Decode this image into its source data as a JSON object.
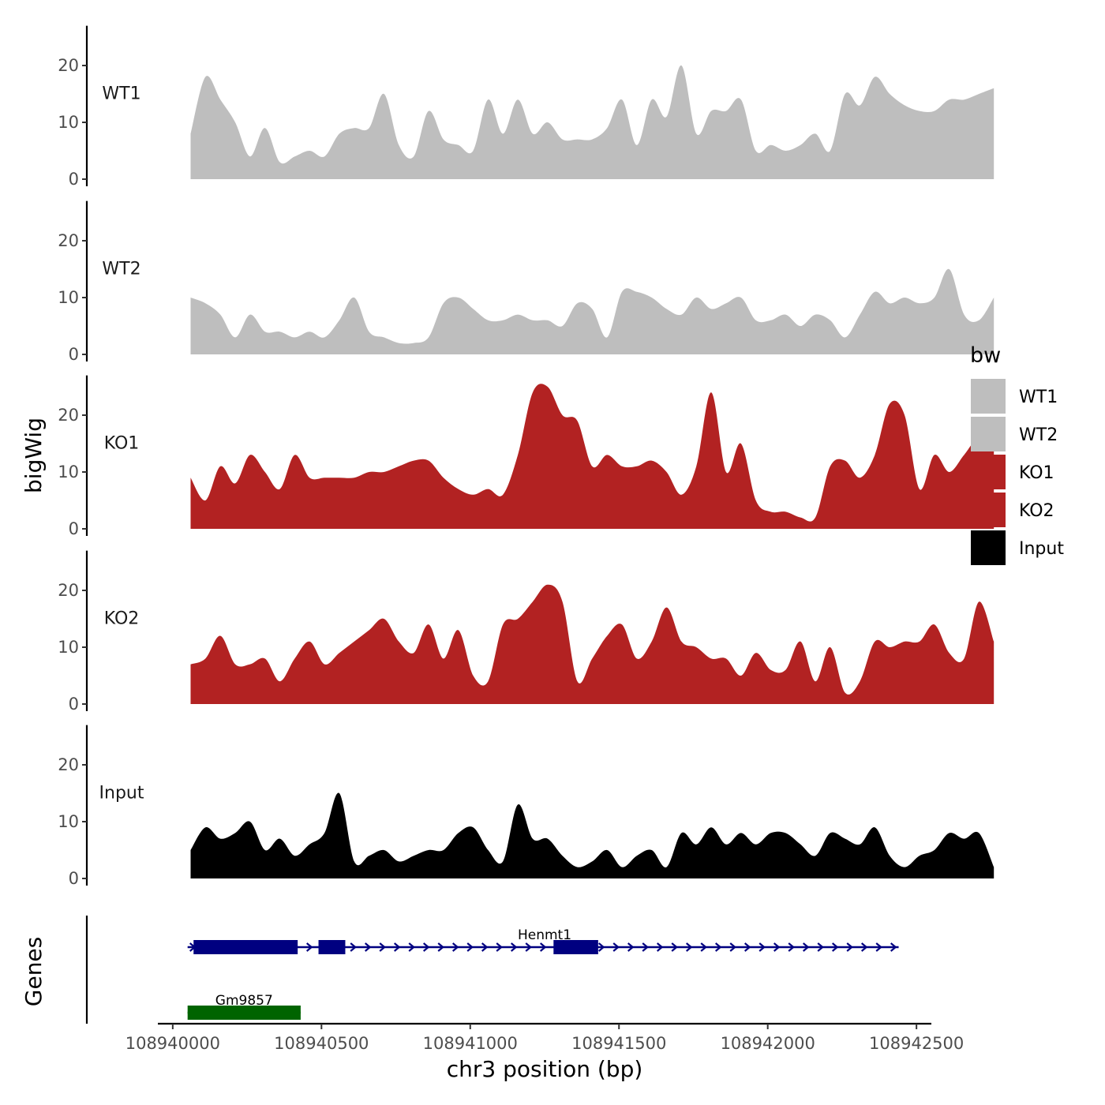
{
  "chart_data": {
    "type": "area",
    "title": "",
    "xlabel": "chr3 position (bp)",
    "ylabel": "bigWig",
    "genes_label": "Genes",
    "xlim": [
      108939950,
      108942550
    ],
    "ylim": [
      0,
      27
    ],
    "x_ticks": [
      108940000,
      108940500,
      108941000,
      108941500,
      108942000,
      108942500
    ],
    "x_tick_labels": [
      "108940000",
      "108940500",
      "108941000",
      "108941500",
      "108942000",
      "108942500"
    ],
    "y_ticks": [
      0,
      10,
      20
    ],
    "y_tick_labels": [
      "0",
      "10",
      "20"
    ],
    "legend": {
      "title": "bw",
      "position": "right",
      "entries": [
        {
          "label": "WT1",
          "color": "#bebebe"
        },
        {
          "label": "WT2",
          "color": "#bebebe"
        },
        {
          "label": "KO1",
          "color": "#b22222"
        },
        {
          "label": "KO2",
          "color": "#b22222"
        },
        {
          "label": "Input",
          "color": "#000000"
        }
      ]
    },
    "x_start": 108940060,
    "x_step": 50,
    "series": [
      {
        "name": "WT1",
        "color": "#bebebe",
        "values": [
          8,
          18,
          14,
          10,
          4,
          9,
          3,
          4,
          5,
          4,
          8,
          9,
          9,
          15,
          6,
          4,
          12,
          7,
          6,
          5,
          14,
          8,
          14,
          8,
          10,
          7,
          7,
          7,
          9,
          14,
          6,
          14,
          11,
          20,
          8,
          12,
          12,
          14,
          5,
          6,
          5,
          6,
          8,
          5,
          15,
          13,
          18,
          15,
          13,
          12,
          12,
          14,
          14,
          15,
          16
        ]
      },
      {
        "name": "WT2",
        "color": "#bebebe",
        "values": [
          10,
          9,
          7,
          3,
          7,
          4,
          4,
          3,
          4,
          3,
          6,
          10,
          4,
          3,
          2,
          2,
          3,
          9,
          10,
          8,
          6,
          6,
          7,
          6,
          6,
          5,
          9,
          8,
          3,
          11,
          11,
          10,
          8,
          7,
          10,
          8,
          9,
          10,
          6,
          6,
          7,
          5,
          7,
          6,
          3,
          7,
          11,
          9,
          10,
          9,
          10,
          15,
          7,
          6,
          10
        ]
      },
      {
        "name": "KO1",
        "color": "#b22222",
        "values": [
          9,
          5,
          11,
          8,
          13,
          10,
          7,
          13,
          9,
          9,
          9,
          9,
          10,
          10,
          11,
          12,
          12,
          9,
          7,
          6,
          7,
          6,
          13,
          24,
          25,
          20,
          19,
          11,
          13,
          11,
          11,
          12,
          10,
          6,
          11,
          24,
          10,
          15,
          5,
          3,
          3,
          2,
          2,
          11,
          12,
          9,
          13,
          22,
          20,
          7,
          13,
          10,
          13,
          16,
          14
        ]
      },
      {
        "name": "KO2",
        "color": "#b22222",
        "values": [
          7,
          8,
          12,
          7,
          7,
          8,
          4,
          8,
          11,
          7,
          9,
          11,
          13,
          15,
          11,
          9,
          14,
          8,
          13,
          5,
          4,
          14,
          15,
          18,
          21,
          18,
          4,
          8,
          12,
          14,
          8,
          11,
          17,
          11,
          10,
          8,
          8,
          5,
          9,
          6,
          6,
          11,
          4,
          10,
          2,
          4,
          11,
          10,
          11,
          11,
          14,
          9,
          8,
          18,
          11
        ]
      },
      {
        "name": "Input",
        "color": "#000000",
        "values": [
          5,
          9,
          7,
          8,
          10,
          5,
          7,
          4,
          6,
          8,
          15,
          3,
          4,
          5,
          3,
          4,
          5,
          5,
          8,
          9,
          5,
          3,
          13,
          7,
          7,
          4,
          2,
          3,
          5,
          2,
          4,
          5,
          2,
          8,
          6,
          9,
          6,
          8,
          6,
          8,
          8,
          6,
          4,
          8,
          7,
          6,
          9,
          4,
          2,
          4,
          5,
          8,
          7,
          8,
          2
        ]
      }
    ],
    "genes": [
      {
        "name": "Henmt1",
        "color": "#000080",
        "row": 0,
        "start": 108940050,
        "end": 108942440,
        "label_pos": 108941250,
        "exons": [
          [
            108940070,
            108940420
          ],
          [
            108940490,
            108940580
          ],
          [
            108941280,
            108941430
          ]
        ]
      },
      {
        "name": "Gm9857",
        "color": "#006400",
        "row": 1,
        "start": 108940050,
        "end": 108940430,
        "label_pos": 108940240,
        "exons": [
          [
            108940050,
            108940430
          ]
        ]
      }
    ]
  }
}
